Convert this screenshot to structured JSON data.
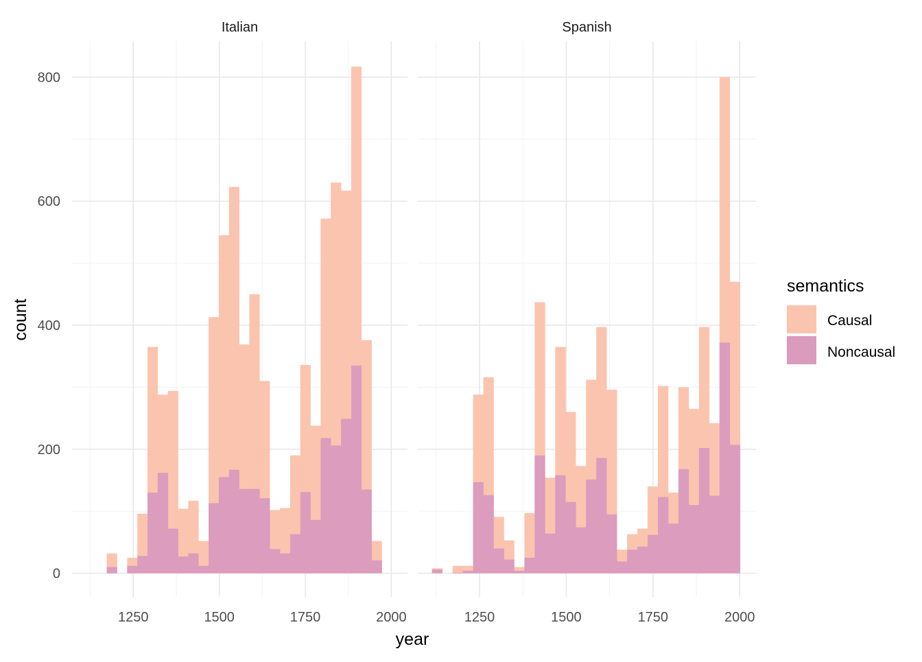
{
  "chart_data": {
    "type": "bar",
    "subtype": "overlapping histogram, faceted",
    "xlabel": "year",
    "ylabel": "count",
    "ylim": [
      -38,
      858
    ],
    "xlim": [
      1072,
      2047
    ],
    "y_ticks": [
      0,
      200,
      400,
      600,
      800
    ],
    "y_minor": [
      100,
      300,
      500,
      700
    ],
    "x_ticks": [
      1250,
      1500,
      1750,
      2000
    ],
    "x_minor": [
      1125,
      1375,
      1625,
      1875
    ],
    "grid": true,
    "legend": {
      "title": "semantics",
      "placement": "right",
      "entries": [
        {
          "label": "Causal",
          "color": "#FBC4AF"
        },
        {
          "label": "Noncausal",
          "color": "#DB9BBD"
        }
      ]
    },
    "bin_width": 29.6,
    "facets": [
      {
        "title": "Italian",
        "bin_start": 1173,
        "series": [
          {
            "name": "Causal",
            "values": [
              32,
              0,
              25,
              96,
              365,
              288,
              294,
              104,
              117,
              52,
              413,
              545,
              623,
              369,
              450,
              310,
              102,
              105,
              190,
              336,
              238,
              572,
              630,
              617,
              817,
              376,
              52
            ]
          },
          {
            "name": "Noncausal",
            "values": [
              10,
              0,
              12,
              28,
              130,
              162,
              72,
              27,
              32,
              12,
              113,
              155,
              167,
              136,
              136,
              121,
              39,
              32,
              63,
              131,
              86,
              218,
              206,
              249,
              335,
              135,
              21
            ]
          }
        ]
      },
      {
        "title": "Spanish",
        "bin_start": 1113,
        "series": [
          {
            "name": "Causal",
            "values": [
              8,
              0,
              12,
              12,
              288,
              316,
              91,
              53,
              10,
              97,
              437,
              154,
              365,
              260,
              173,
              312,
              397,
              296,
              38,
              63,
              72,
              140,
              302,
              130,
              300,
              265,
              397,
              242,
              800,
              470
            ]
          },
          {
            "name": "Noncausal",
            "values": [
              6,
              0,
              1,
              4,
              147,
              126,
              40,
              22,
              4,
              25,
              190,
              64,
              158,
              115,
              74,
              151,
              186,
              95,
              19,
              38,
              43,
              62,
              123,
              80,
              168,
              110,
              202,
              125,
              372,
              207
            ]
          }
        ]
      }
    ]
  }
}
